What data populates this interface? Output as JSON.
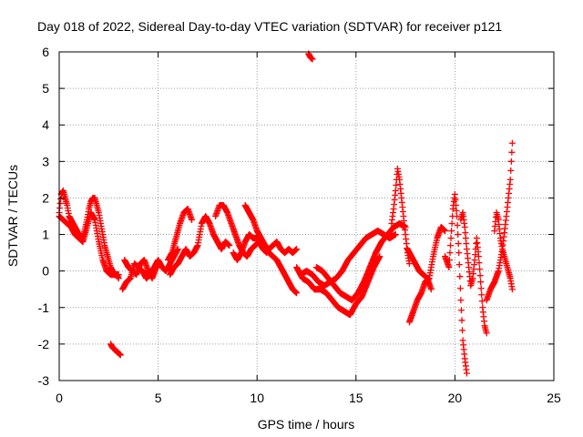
{
  "chart_data": {
    "type": "scatter",
    "title": "Day 018 of 2022, Sidereal Day-to-day VTEC variation (SDTVAR) for receiver p121",
    "xlabel": "GPS time / hours",
    "ylabel": "SDTVAR / TECUs",
    "xlim": [
      0,
      25
    ],
    "ylim": [
      -3,
      6
    ],
    "grid": true,
    "marker": "plus",
    "color": "#ff0000",
    "x_ticks": [
      "0",
      "5",
      "10",
      "15",
      "20",
      "25"
    ],
    "y_ticks": [
      "-3",
      "-2",
      "-1",
      "0",
      "1",
      "2",
      "3",
      "4",
      "5",
      "6"
    ],
    "series": [
      {
        "name": "SDTVAR",
        "segments": [
          {
            "x": [
              0.0,
              0.1,
              0.2,
              0.3,
              0.4,
              0.5,
              0.6,
              0.8,
              1.0,
              1.2,
              1.4,
              1.5,
              1.6,
              1.7,
              1.8,
              1.9,
              2.0,
              2.1,
              2.2,
              2.3,
              2.4,
              2.5,
              2.6,
              2.7,
              2.8,
              2.9,
              3.0
            ],
            "y": [
              1.6,
              2.1,
              2.2,
              2.0,
              1.8,
              1.5,
              1.4,
              1.2,
              1.0,
              0.9,
              1.4,
              1.7,
              1.9,
              2.0,
              2.0,
              1.8,
              1.6,
              1.3,
              1.0,
              0.7,
              0.5,
              0.3,
              0.1,
              0.0,
              -0.1,
              -0.1,
              -0.2
            ]
          },
          {
            "x": [
              0.0,
              0.2,
              0.4,
              0.6,
              0.8,
              1.0,
              1.2,
              1.4,
              1.6,
              1.8,
              2.0,
              2.2,
              2.4,
              2.6,
              2.8,
              3.0
            ],
            "y": [
              1.5,
              1.4,
              1.3,
              1.2,
              1.0,
              0.9,
              0.8,
              1.2,
              1.6,
              1.4,
              0.8,
              0.3,
              0.0,
              -0.1,
              -0.1,
              -0.1
            ]
          },
          {
            "x": [
              2.6,
              2.7,
              2.8,
              2.9,
              3.0,
              3.1
            ],
            "y": [
              -2.0,
              -2.1,
              -2.15,
              -2.2,
              -2.25,
              -2.3
            ]
          },
          {
            "x": [
              3.2,
              3.4,
              3.6,
              3.8,
              4.0,
              4.2,
              4.4,
              4.6,
              4.8,
              5.0,
              5.2,
              5.4,
              5.6,
              5.8,
              6.0
            ],
            "y": [
              -0.5,
              -0.3,
              -0.2,
              0.2,
              0.1,
              0.0,
              -0.2,
              -0.1,
              0.1,
              0.3,
              0.1,
              0.0,
              0.2,
              0.4,
              0.6
            ]
          },
          {
            "x": [
              3.3,
              3.5,
              3.7,
              3.9,
              4.1,
              4.3,
              4.5,
              4.7,
              4.9,
              5.1
            ],
            "y": [
              0.3,
              0.1,
              0.0,
              -0.1,
              0.2,
              0.3,
              0.0,
              -0.2,
              0.1,
              0.2
            ]
          },
          {
            "x": [
              5.5,
              5.7,
              5.9,
              6.1,
              6.3,
              6.5,
              6.7
            ],
            "y": [
              0.3,
              0.5,
              0.9,
              1.3,
              1.6,
              1.7,
              1.4
            ]
          },
          {
            "x": [
              5.6,
              5.8,
              6.0,
              6.2,
              6.4,
              6.6,
              6.8,
              7.0,
              7.2,
              7.4,
              7.6,
              7.8,
              8.0,
              8.2,
              8.4,
              8.6
            ],
            "y": [
              -0.1,
              0.1,
              0.2,
              0.4,
              0.6,
              0.4,
              0.5,
              0.7,
              1.3,
              1.5,
              1.3,
              1.0,
              0.8,
              0.6,
              0.8,
              0.7
            ]
          },
          {
            "x": [
              7.9,
              8.1,
              8.3,
              8.5,
              8.7,
              8.9,
              9.1,
              9.3,
              9.5,
              9.7,
              9.9,
              10.1,
              10.3,
              10.5
            ],
            "y": [
              1.5,
              1.8,
              1.8,
              1.6,
              1.3,
              1.0,
              0.7,
              0.5,
              0.4,
              0.6,
              0.7,
              0.8,
              0.6,
              0.5
            ]
          },
          {
            "x": [
              8.8,
              9.0,
              9.2,
              9.4,
              9.6,
              9.8,
              10.0,
              10.2,
              10.4,
              10.6,
              10.8,
              11.0,
              11.2,
              11.4,
              11.6,
              11.8,
              12.0
            ],
            "y": [
              0.5,
              0.3,
              0.5,
              0.8,
              1.0,
              0.9,
              0.9,
              0.8,
              0.7,
              0.6,
              0.7,
              0.8,
              0.6,
              0.5,
              0.6,
              0.5,
              0.6
            ]
          },
          {
            "x": [
              9.4,
              9.6,
              9.8,
              10.0,
              10.2,
              10.4,
              10.6,
              10.8,
              11.0,
              11.2,
              11.4,
              11.6,
              11.8,
              12.0
            ],
            "y": [
              1.8,
              1.6,
              1.4,
              1.1,
              0.9,
              0.7,
              0.5,
              0.4,
              0.3,
              0.1,
              -0.1,
              -0.3,
              -0.5,
              -0.6
            ]
          },
          {
            "x": [
              12.6,
              12.7,
              12.8
            ],
            "y": [
              5.95,
              5.85,
              5.8
            ]
          },
          {
            "x": [
              12.0,
              12.3,
              12.6,
              12.9,
              13.2,
              13.5,
              13.8,
              14.1,
              14.4,
              14.7,
              15.0,
              15.3,
              15.6,
              15.9,
              16.2
            ],
            "y": [
              0.1,
              -0.2,
              -0.3,
              -0.5,
              -0.5,
              -0.6,
              -0.8,
              -1.0,
              -1.1,
              -1.2,
              -0.9,
              -0.7,
              -0.3,
              0.1,
              0.4
            ]
          },
          {
            "x": [
              12.2,
              12.5,
              12.8,
              13.1,
              13.4,
              13.7,
              14.0,
              14.3,
              14.6,
              14.9,
              15.2,
              15.5,
              15.8,
              16.1,
              16.4,
              16.7,
              17.0
            ],
            "y": [
              -0.1,
              0.0,
              -0.1,
              -0.3,
              -0.4,
              -0.3,
              -0.2,
              0.0,
              0.3,
              0.5,
              0.7,
              0.9,
              1.0,
              1.1,
              1.0,
              0.9,
              1.0
            ]
          },
          {
            "x": [
              13.0,
              13.3,
              13.6,
              13.9,
              14.2,
              14.5,
              14.8,
              15.1,
              15.4,
              15.7,
              16.0,
              16.3,
              16.6,
              16.9,
              17.2,
              17.5
            ],
            "y": [
              0.1,
              0.0,
              -0.2,
              -0.4,
              -0.6,
              -0.7,
              -0.8,
              -0.6,
              -0.3,
              0.1,
              0.5,
              0.8,
              1.0,
              1.2,
              1.3,
              1.2
            ]
          },
          {
            "x": [
              16.8,
              16.9,
              17.0,
              17.1,
              17.2,
              17.3,
              17.4,
              17.5,
              17.6,
              17.7
            ],
            "y": [
              1.3,
              1.7,
              2.2,
              2.8,
              2.5,
              2.0,
              1.5,
              1.0,
              0.5,
              0.2
            ]
          },
          {
            "x": [
              17.7,
              17.9,
              18.1,
              18.3,
              18.5,
              18.7,
              18.9,
              19.1,
              19.3,
              19.5
            ],
            "y": [
              -1.4,
              -1.1,
              -0.8,
              -0.6,
              -0.3,
              -0.2,
              0.4,
              0.9,
              1.2,
              1.1
            ]
          },
          {
            "x": [
              17.6,
              17.8,
              18.0,
              18.2,
              18.4,
              18.6,
              18.8
            ],
            "y": [
              0.6,
              0.4,
              0.2,
              0.0,
              -0.1,
              -0.2,
              -0.5
            ]
          },
          {
            "x": [
              19.5,
              19.7,
              19.9,
              20.0,
              20.1,
              20.2,
              20.3,
              20.4,
              20.5,
              20.6
            ],
            "y": [
              0.4,
              0.1,
              1.7,
              2.1,
              1.5,
              0.5,
              -0.8,
              -1.9,
              -2.4,
              -2.8
            ]
          },
          {
            "x": [
              20.3,
              20.4,
              20.5,
              20.6,
              20.7,
              20.8,
              20.9,
              21.0,
              21.1,
              21.2,
              21.3,
              21.4,
              21.5,
              21.6
            ],
            "y": [
              1.4,
              1.6,
              1.2,
              0.6,
              0.1,
              -0.4,
              -0.2,
              0.3,
              0.9,
              0.4,
              -0.3,
              -1.0,
              -1.5,
              -1.7
            ]
          },
          {
            "x": [
              21.6,
              21.8,
              22.0,
              22.2,
              22.4,
              22.6,
              22.8,
              22.9
            ],
            "y": [
              -0.8,
              -0.5,
              -0.3,
              0.0,
              0.6,
              1.5,
              2.5,
              3.5
            ]
          },
          {
            "x": [
              22.0,
              22.1,
              22.2,
              22.3,
              22.4,
              22.5,
              22.6,
              22.7,
              22.8,
              22.9
            ],
            "y": [
              1.1,
              1.6,
              1.4,
              0.9,
              0.6,
              0.4,
              0.2,
              0.0,
              -0.2,
              -0.5
            ]
          }
        ]
      }
    ]
  }
}
